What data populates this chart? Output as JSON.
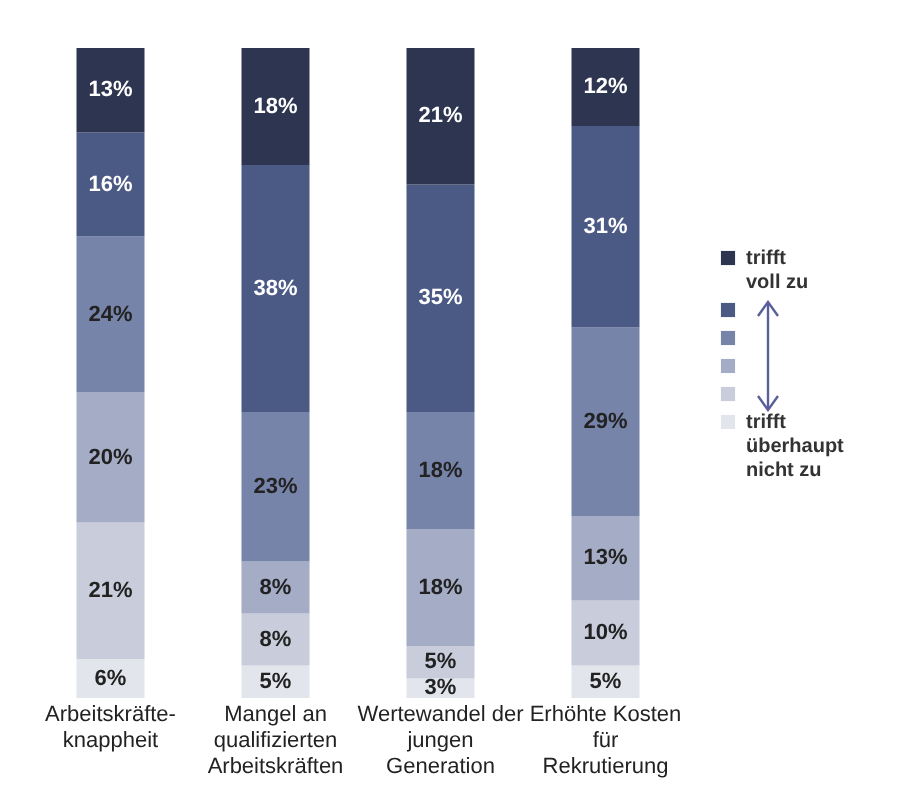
{
  "chart_data": {
    "type": "bar",
    "stacked": true,
    "tick_labels": "x",
    "grid": false,
    "legend": "right",
    "categories": [
      "Arbeitskräfte-knappheit",
      "Mangel an qualifizierten Arbeitskräften",
      "Wertewandel der jungen Generation",
      "Erhöhte Kosten für Rekrutierung"
    ],
    "series": [
      {
        "name": "trifft überhaupt nicht zu",
        "color": "#e3e5ed",
        "values": [
          6,
          5,
          3,
          5
        ],
        "value_labels": [
          "6%",
          "5%",
          "3%",
          "5%"
        ]
      },
      {
        "color": "#c8ccdb",
        "values": [
          21,
          8,
          5,
          10
        ],
        "value_labels": [
          "21%",
          "8%",
          "5%",
          "10%"
        ]
      },
      {
        "color": "#a4acc6",
        "values": [
          20,
          8,
          18,
          13
        ],
        "value_labels": [
          "20%",
          "8%",
          "18%",
          "13%"
        ]
      },
      {
        "color": "#7784aa",
        "values": [
          24,
          23,
          18,
          29
        ],
        "value_labels": [
          "24%",
          "23%",
          "18%",
          "29%"
        ]
      },
      {
        "color": "#4b5a85",
        "values": [
          16,
          38,
          35,
          31
        ],
        "value_labels": [
          "16%",
          "38%",
          "35%",
          "31%"
        ]
      },
      {
        "name": "trifft voll zu",
        "color": "#2d3550",
        "values": [
          13,
          18,
          21,
          12
        ],
        "value_labels": [
          "13%",
          "18%",
          "21%",
          "12%"
        ]
      }
    ]
  }
}
